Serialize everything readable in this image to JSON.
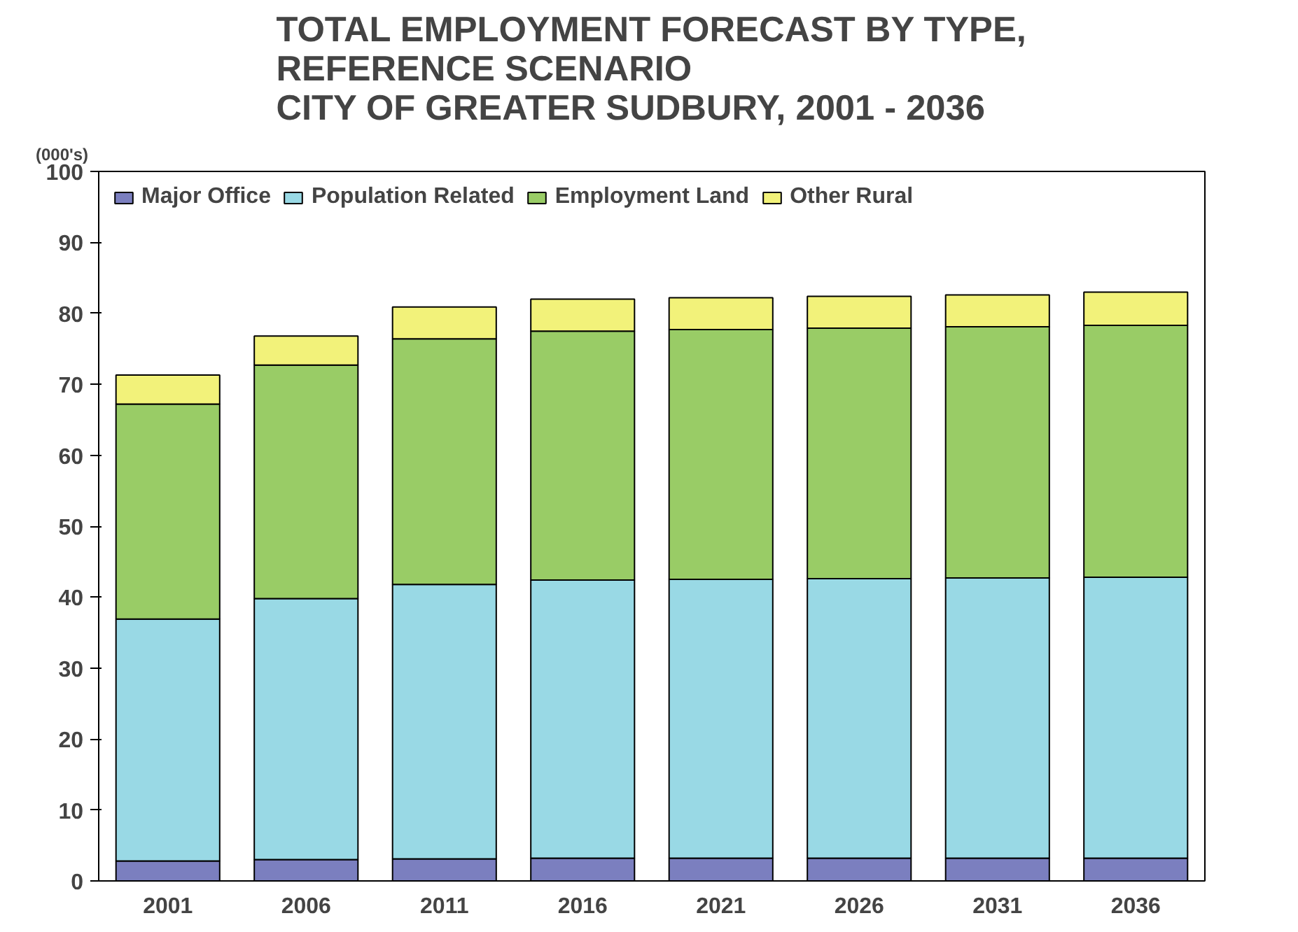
{
  "chart_data": {
    "type": "bar",
    "stacked": true,
    "title": "TOTAL EMPLOYMENT FORECAST BY TYPE,\nREFERENCE SCENARIO\nCITY OF GREATER SUDBURY, 2001 - 2036",
    "ylabel": "(000's)",
    "categories": [
      "2001",
      "2006",
      "2011",
      "2016",
      "2021",
      "2026",
      "2031",
      "2036"
    ],
    "series": [
      {
        "name": "Major Office",
        "color": "#7b7fbf",
        "values": [
          2.8,
          3.0,
          3.1,
          3.2,
          3.2,
          3.2,
          3.2,
          3.2
        ]
      },
      {
        "name": "Population Related",
        "color": "#99d9e5",
        "values": [
          34.1,
          36.8,
          38.7,
          39.2,
          39.3,
          39.4,
          39.5,
          39.6
        ]
      },
      {
        "name": "Employment Land",
        "color": "#99cc66",
        "values": [
          30.3,
          32.9,
          34.6,
          35.1,
          35.2,
          35.3,
          35.4,
          35.5
        ]
      },
      {
        "name": "Other Rural",
        "color": "#f2f27a",
        "values": [
          4.1,
          4.1,
          4.5,
          4.5,
          4.5,
          4.5,
          4.5,
          4.7
        ]
      }
    ],
    "ylim": [
      0,
      100
    ],
    "yticks": [
      0,
      10,
      20,
      30,
      40,
      50,
      60,
      70,
      80,
      90,
      100
    ],
    "grid": false,
    "legend": "top left"
  }
}
